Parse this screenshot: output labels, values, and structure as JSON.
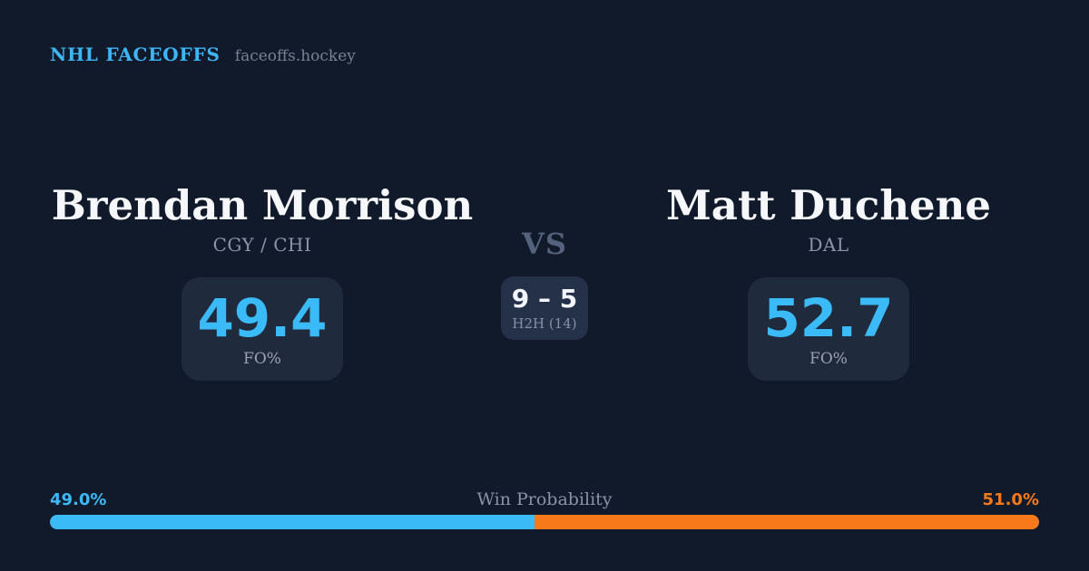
{
  "header": {
    "brand": "NHL FACEOFFS",
    "site": "faceoffs.hockey"
  },
  "matchup": {
    "vs_label": "VS",
    "h2h": {
      "score": "9 – 5",
      "label": "H2H (14)"
    },
    "players": [
      {
        "name": "Brendan Morrison",
        "team": "CGY / CHI",
        "stat_value": "49.4",
        "stat_label": "FO%"
      },
      {
        "name": "Matt Duchene",
        "team": "DAL",
        "stat_value": "52.7",
        "stat_label": "FO%"
      }
    ]
  },
  "win_probability": {
    "title": "Win Probability",
    "left_pct_label": "49.0%",
    "right_pct_label": "51.0%",
    "left_value": 49.0,
    "right_value": 51.0
  },
  "colors": {
    "background": "#111a2b",
    "card_background": "#1f2a3c",
    "h2h_card_background": "#253148",
    "accent_blue": "#3bbaf8",
    "accent_orange": "#f8791a",
    "text_primary": "#f5f7fa",
    "text_muted": "#8b95a8"
  }
}
